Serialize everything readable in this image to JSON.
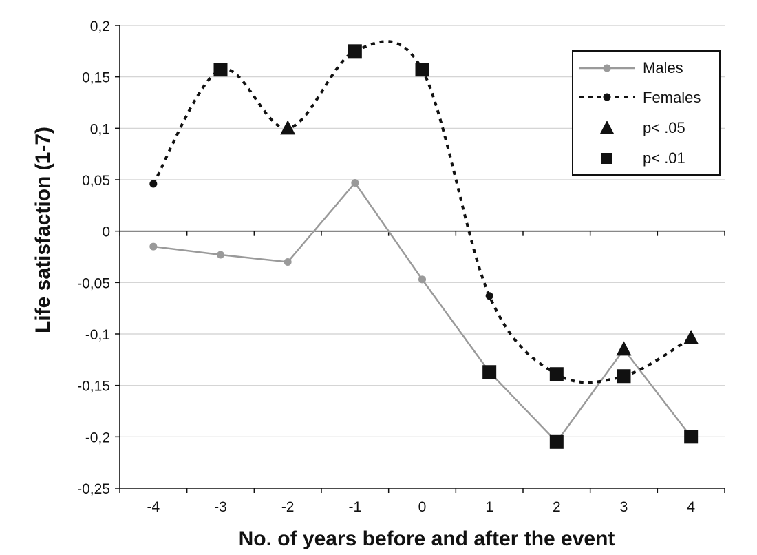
{
  "chart_data": {
    "type": "line",
    "title": "",
    "xlabel": "No. of years before and after the event",
    "ylabel": "Life satisfaction (1-7)",
    "x": [
      -4,
      -3,
      -2,
      -1,
      0,
      1,
      2,
      3,
      4
    ],
    "x_tick_labels": [
      "-4",
      "-3",
      "-2",
      "-1",
      "0",
      "1",
      "2",
      "3",
      "4"
    ],
    "ylim": [
      -0.25,
      0.2
    ],
    "y_ticks": [
      -0.25,
      -0.2,
      -0.15,
      -0.1,
      -0.05,
      0,
      0.05,
      0.1,
      0.15,
      0.2
    ],
    "y_tick_labels": [
      "-0,25",
      "-0,2",
      "-0,15",
      "-0,1",
      "-0,05",
      "0",
      "0,05",
      "0,1",
      "0,15",
      "0,2"
    ],
    "grid": "horizontal",
    "legend_position": "top-right",
    "series": [
      {
        "name": "Males",
        "style": "solid",
        "color": "#9a9a9a",
        "values": [
          -0.015,
          -0.023,
          -0.03,
          0.047,
          -0.047,
          -0.137,
          -0.205,
          -0.115,
          -0.2
        ],
        "significance": [
          "",
          "",
          "",
          "",
          "",
          "p<.01",
          "p<.01",
          "p<.05",
          "p<.01"
        ]
      },
      {
        "name": "Females",
        "style": "dotted",
        "color": "#111111",
        "values": [
          0.046,
          0.157,
          0.1,
          0.175,
          0.157,
          -0.063,
          -0.139,
          -0.141,
          -0.104
        ],
        "significance": [
          "",
          "p<.01",
          "p<.05",
          "p<.01",
          "p<.01",
          "",
          "p<.01",
          "p<.01",
          "p<.05"
        ]
      }
    ],
    "legend": [
      {
        "key": "males",
        "label": "Males",
        "marker": "line-solid"
      },
      {
        "key": "females",
        "label": "Females",
        "marker": "line-dotted"
      },
      {
        "key": "p05",
        "label": "p< .05",
        "marker": "triangle"
      },
      {
        "key": "p01",
        "label": "p< .01",
        "marker": "square"
      }
    ]
  }
}
